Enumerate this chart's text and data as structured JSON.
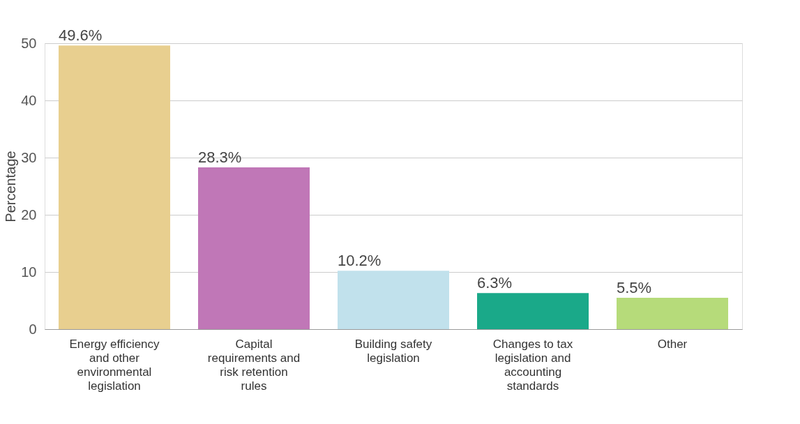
{
  "chart_data": {
    "type": "bar",
    "ylabel": "Percentage",
    "categories": [
      "Energy efficiency and other environmental legislation",
      "Capital requirements and risk retention rules",
      "Building safety legislation",
      "Changes to tax legislation and accounting standards",
      "Other"
    ],
    "values": [
      49.6,
      28.3,
      10.2,
      6.3,
      5.5
    ],
    "value_labels": [
      "49.6%",
      "28.3%",
      "10.2%",
      "6.3%",
      "5.5%"
    ],
    "colors": [
      "#e8cf8f",
      "#c077b7",
      "#c1e1ec",
      "#1aa989",
      "#b6db7a"
    ],
    "ylim": [
      0,
      50
    ],
    "yticks": [
      0,
      10,
      20,
      30,
      40,
      50
    ],
    "grid": "y"
  }
}
